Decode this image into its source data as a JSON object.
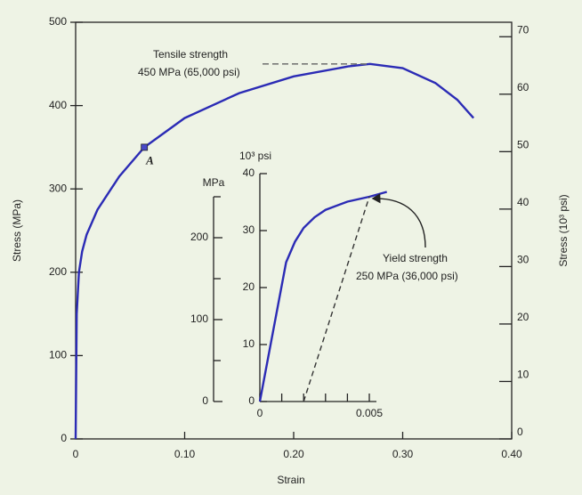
{
  "chart_data": {
    "type": "line",
    "x_label": "Strain",
    "y_label": "Stress (MPa)",
    "y2_label": "Stress (10³ psi)",
    "xlim": [
      0,
      0.4
    ],
    "xticks": [
      0,
      {
        "value": 0.1,
        "label": "0.10"
      },
      {
        "value": 0.2,
        "label": "0.20"
      },
      {
        "value": 0.3,
        "label": "0.30"
      },
      {
        "value": 0.4,
        "label": "0.40"
      }
    ],
    "ylim": [
      0,
      500
    ],
    "yticks": [
      0,
      100,
      200,
      300,
      400,
      500
    ],
    "y2lim": [
      0,
      72.52
    ],
    "y2ticks": [
      0,
      10,
      20,
      30,
      40,
      50,
      60,
      70
    ],
    "series": [
      {
        "color": "#2b2bb5",
        "x": [
          0,
          0.001,
          0.003,
          0.006,
          0.01,
          0.02,
          0.04,
          0.063,
          0.1,
          0.15,
          0.2,
          0.25,
          0.27,
          0.3,
          0.33,
          0.35,
          0.365
        ],
        "values": [
          0,
          150,
          200,
          225,
          245,
          275,
          315,
          350,
          385,
          415,
          435,
          447,
          450,
          445,
          427,
          407,
          385
        ]
      }
    ],
    "annotations": [
      {
        "text": "A",
        "x": 0.063,
        "y": 350
      },
      {
        "text": [
          "Tensile strength",
          "450 MPa (65,000 psi)"
        ],
        "x": 0.27,
        "y": 450
      }
    ],
    "inset": {
      "type": "line",
      "xlim": [
        0,
        0.005
      ],
      "xticks": [
        0,
        0.005
      ],
      "x_minor_ticks": [
        0.001,
        0.002,
        0.003,
        0.004
      ],
      "y_label": "MPa",
      "ylim": [
        0,
        250
      ],
      "yticks": [
        0,
        100,
        200
      ],
      "y_minor_ticks": [
        50,
        150,
        250
      ],
      "y2_label": "10³ psi",
      "y2lim": [
        0,
        40
      ],
      "y2ticks": [
        0,
        10,
        20,
        30,
        40
      ],
      "series": [
        {
          "color": "#2b2bb5",
          "x": [
            0,
            0.0012,
            0.0016,
            0.002,
            0.0025,
            0.003,
            0.004,
            0.005,
            0.0058
          ],
          "values": [
            0,
            170,
            195,
            212,
            225,
            234,
            244,
            250,
            256
          ]
        }
      ],
      "offset_line": {
        "x": [
          0.002,
          0.005
        ],
        "values": [
          0,
          250
        ]
      },
      "annotation": {
        "text": [
          "Yield strength",
          "250 MPa (36,000 psi)"
        ],
        "x": 0.005,
        "y": 250
      }
    }
  }
}
